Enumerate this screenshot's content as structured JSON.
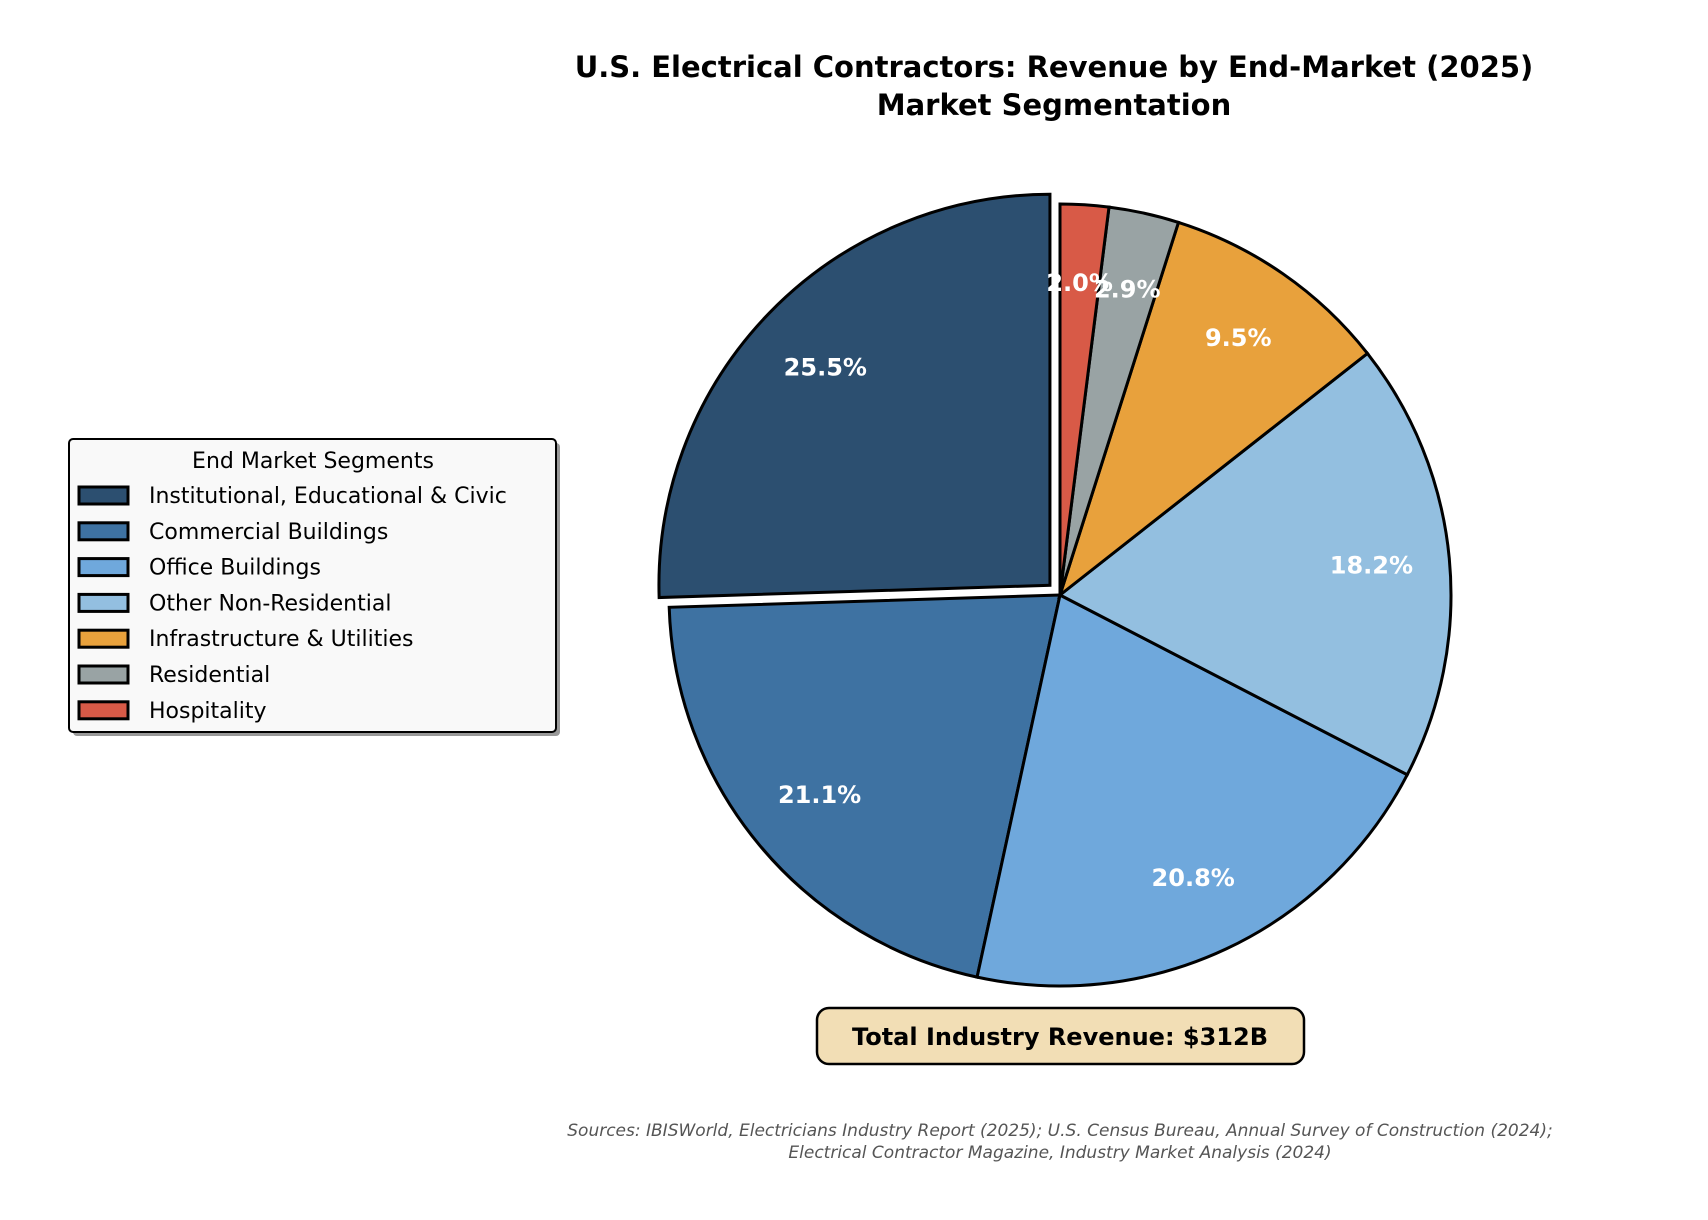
{
  "chart_data": {
    "type": "pie",
    "title": "U.S. Electrical Contractors: Revenue by End-Market (2025)",
    "subtitle": "Market Segmentation",
    "categories": [
      "Institutional, Educational & Civic",
      "Commercial Buildings",
      "Office Buildings",
      "Other Non-Residential",
      "Infrastructure & Utilities",
      "Residential",
      "Hospitality"
    ],
    "values": [
      25.5,
      21.1,
      20.8,
      18.2,
      9.5,
      2.9,
      2.0
    ],
    "labels": [
      "25.5%",
      "21.1%",
      "20.8%",
      "18.2%",
      "9.5%",
      "2.9%",
      "2.0%"
    ],
    "colors": [
      "#2c4f70",
      "#3e72a2",
      "#6fa8dc",
      "#93bfe0",
      "#e8a13c",
      "#99a3a4",
      "#d85a47"
    ],
    "exploded": [
      "Institutional, Educational & Civic"
    ],
    "start_angle_deg": 90,
    "direction": "counterclockwise",
    "legend": {
      "title": "End Market Segments",
      "placement": "left"
    },
    "annotation": "Total Industry Revenue: $312B",
    "sources": [
      "Sources: IBISWorld, Electricians Industry Report (2025); U.S. Census Bureau, Annual Survey of Construction (2024);",
      "Electrical Contractor Magazine, Industry Market Analysis (2024)"
    ]
  }
}
